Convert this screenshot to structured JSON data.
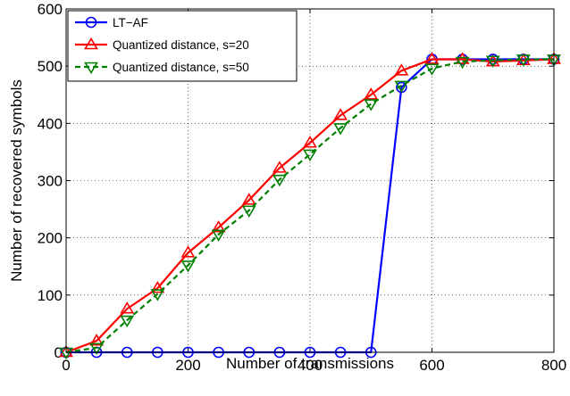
{
  "chart_data": {
    "type": "line",
    "title": "",
    "xlabel": "Number of transmissions",
    "ylabel": "Number of recovered symbols",
    "xlim": [
      0,
      800
    ],
    "ylim": [
      0,
      600
    ],
    "xticks": [
      "0",
      "200",
      "400",
      "600",
      "800"
    ],
    "yticks": [
      "0",
      "100",
      "200",
      "300",
      "400",
      "500",
      "600"
    ],
    "grid": true,
    "legend_position": "top-left",
    "series": [
      {
        "name": "LT−AF",
        "color": "#0000ff",
        "marker": "circle",
        "dash": "solid",
        "x": [
          0,
          50,
          100,
          150,
          200,
          250,
          300,
          350,
          400,
          450,
          500,
          550,
          600,
          650,
          700,
          750,
          800
        ],
        "y": [
          0,
          0,
          0,
          0,
          0,
          0,
          0,
          0,
          0,
          0,
          0,
          463,
          512,
          512,
          512,
          512,
          512
        ]
      },
      {
        "name": "Quantized distance, s=20",
        "color": "#ff0000",
        "marker": "triangle-up",
        "dash": "solid",
        "x": [
          0,
          50,
          100,
          150,
          200,
          250,
          300,
          350,
          400,
          450,
          500,
          550,
          600,
          650,
          700,
          750,
          800
        ],
        "y": [
          0,
          20,
          76,
          112,
          174,
          218,
          266,
          322,
          366,
          414,
          450,
          492,
          512,
          512,
          508,
          510,
          512
        ]
      },
      {
        "name": "Quantized distance, s=50",
        "color": "#008000",
        "marker": "triangle-down",
        "dash": "dashed",
        "x": [
          0,
          50,
          100,
          150,
          200,
          250,
          300,
          350,
          400,
          450,
          500,
          550,
          600,
          650,
          700,
          750,
          800
        ],
        "y": [
          0,
          8,
          56,
          102,
          152,
          206,
          248,
          302,
          346,
          392,
          434,
          466,
          496,
          508,
          510,
          512,
          512
        ]
      }
    ]
  }
}
